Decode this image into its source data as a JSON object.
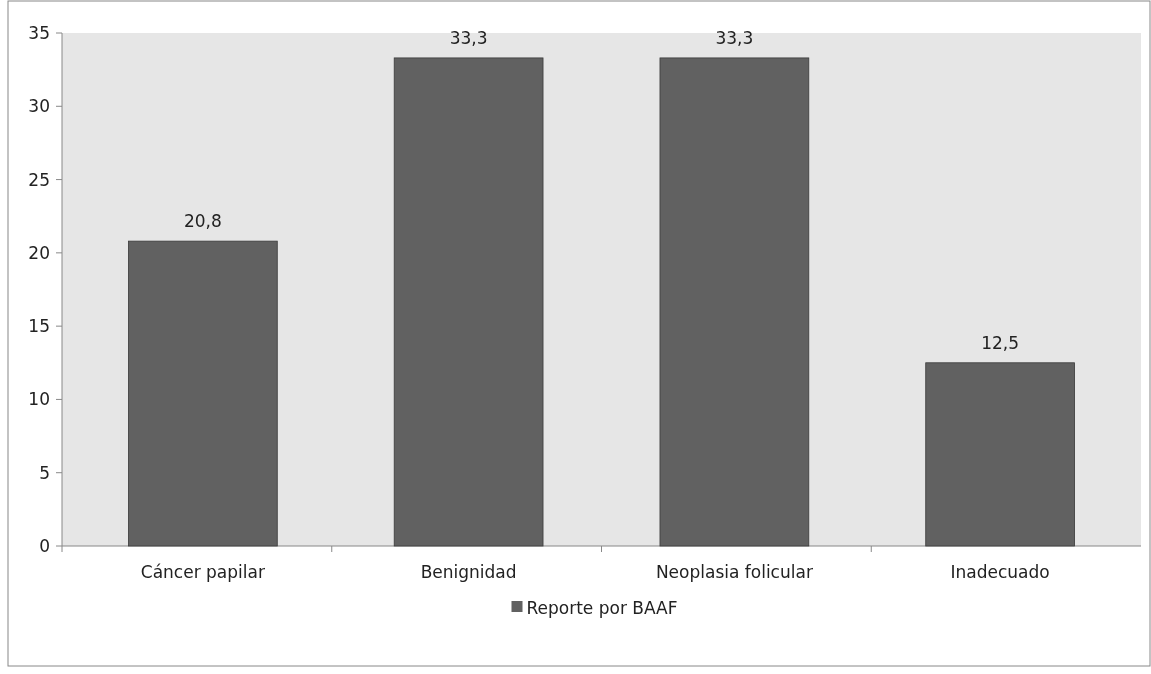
{
  "chart_data": {
    "type": "bar",
    "categories": [
      "Cáncer papilar",
      "Benignidad",
      "Neoplasia folicular",
      "Inadecuado"
    ],
    "series": [
      {
        "name": "Reporte por BAAF",
        "color": "#616161",
        "values": [
          20.8,
          33.3,
          33.3,
          12.5
        ],
        "value_labels": [
          "20,8",
          "33,3",
          "33,3",
          "12,5"
        ]
      }
    ],
    "ylim": [
      0,
      35
    ],
    "yticks": [
      0,
      5,
      10,
      15,
      20,
      25,
      30,
      35
    ],
    "grid": false,
    "legend": "bottom"
  }
}
